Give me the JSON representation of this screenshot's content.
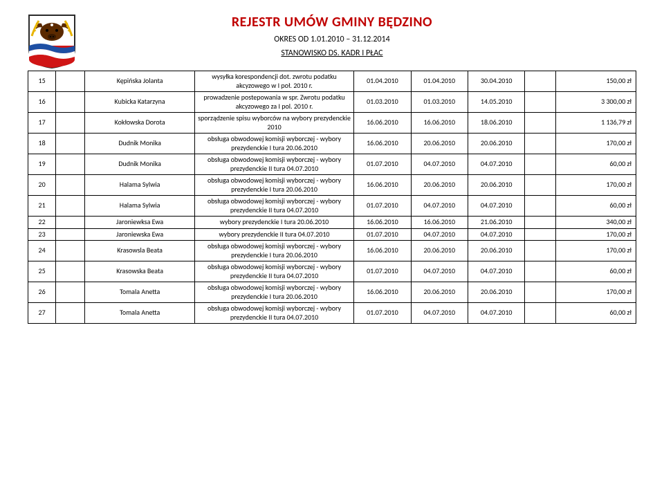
{
  "header": {
    "title": "REJESTR UMÓW GMINY BĘDZINO",
    "period": "OKRES OD 1.01.2010 – 31.12.2014",
    "subtitle": "STANOWISKO DS. KADR I PŁAC"
  },
  "crest": {
    "colors": {
      "shield_border": "#2a2a2a",
      "top": "#ffffff",
      "bull": "#5b2a00",
      "wheat": "#e8b400",
      "wave_blue": "#1e4fa3",
      "wave_red": "#d01515",
      "wave_white": "#ffffff"
    }
  },
  "table": {
    "col_widths": {
      "num": 38,
      "gap1": 40,
      "name": 150,
      "desc": 218,
      "d1": 78,
      "d2": 78,
      "d3": 78,
      "gap2": 42,
      "amt": 110
    },
    "rows": [
      {
        "num": "15",
        "name": "Kępińska Jolanta",
        "desc": "wysyłka korespondencji dot. zwrotu podatku akcyzowego w I poł. 2010 r.",
        "d1": "01.04.2010",
        "d2": "01.04.2010",
        "d3": "30.04.2010",
        "amt": "150,00 zł"
      },
      {
        "num": "16",
        "name": "Kubicka Katarzyna",
        "desc": "prowadzenie postepowania w spr. Zwrotu podatku akcyzowego za I pol. 2010 r.",
        "d1": "01.03.2010",
        "d2": "01.03.2010",
        "d3": "14.05.2010",
        "amt": "3 300,00 zł"
      },
      {
        "num": "17",
        "name": "Kokłowska Dorota",
        "desc": "sporządzenie spisu wyborców na wybory prezydenckie 2010",
        "d1": "16.06.2010",
        "d2": "16.06.2010",
        "d3": "18.06.2010",
        "amt": "1 136,79 zł"
      },
      {
        "num": "18",
        "name": "Dudnik Monika",
        "desc": "obsługa obwodowej komisji wyborczej - wybory prezydenckie I tura 20.06.2010",
        "d1": "16.06.2010",
        "d2": "20.06.2010",
        "d3": "20.06.2010",
        "amt": "170,00 zł"
      },
      {
        "num": "19",
        "name": "Dudnik Monika",
        "desc": "obsługa obwodowej komisji wyborczej - wybory prezydenckie II tura 04.07.2010",
        "d1": "01.07.2010",
        "d2": "04.07.2010",
        "d3": "04.07.2010",
        "amt": "60,00 zł"
      },
      {
        "num": "20",
        "name": "Halama Sylwia",
        "desc": "obsługa obwodowej komisji wyborczej - wybory prezydenckie I tura 20.06.2010",
        "d1": "16.06.2010",
        "d2": "20.06.2010",
        "d3": "20.06.2010",
        "amt": "170,00 zł"
      },
      {
        "num": "21",
        "name": "Halama Sylwia",
        "desc": "obsługa obwodowej komisji wyborczej - wybory prezydenckie II tura 04.07.2010",
        "d1": "01.07.2010",
        "d2": "04.07.2010",
        "d3": "04.07.2010",
        "amt": "60,00 zł"
      },
      {
        "num": "22",
        "name": "Jaroniewksa Ewa",
        "desc": "wybory prezydenckie I tura 20.06.2010",
        "d1": "16.06.2010",
        "d2": "16.06.2010",
        "d3": "21.06.2010",
        "amt": "340,00 zł"
      },
      {
        "num": "23",
        "name": "Jaroniewska Ewa",
        "desc": "wybory prezydenckie II tura 04.07.2010",
        "d1": "01.07.2010",
        "d2": "04.07.2010",
        "d3": "04.07.2010",
        "amt": "170,00 zł"
      },
      {
        "num": "24",
        "name": "Krasowsla Beata",
        "desc": "obsługa obwodowej komisji wyborczej - wybory prezydenckie I tura 20.06.2010",
        "d1": "16.06.2010",
        "d2": "20.06.2010",
        "d3": "20.06.2010",
        "amt": "170,00 zł"
      },
      {
        "num": "25",
        "name": "Krasowska Beata",
        "desc": "obsługa obwodowej komisji wyborczej - wybory prezydenckie II tura 04.07.2010",
        "d1": "01.07.2010",
        "d2": "04.07.2010",
        "d3": "04.07.2010",
        "amt": "60,00 zł"
      },
      {
        "num": "26",
        "name": "Tomala Anetta",
        "desc": "obsługa obwodowej komisji wyborczej - wybory prezydenckie I tura 20.06.2010",
        "d1": "16.06.2010",
        "d2": "20.06.2010",
        "d3": "20.06.2010",
        "amt": "170,00 zł"
      },
      {
        "num": "27",
        "name": "Tomala Anetta",
        "desc": "obsługa obwodowej komisji wyborczej - wybory prezydenckie II tura 04.07.2010",
        "d1": "01.07.2010",
        "d2": "04.07.2010",
        "d3": "04.07.2010",
        "amt": "60,00 zł"
      }
    ]
  }
}
